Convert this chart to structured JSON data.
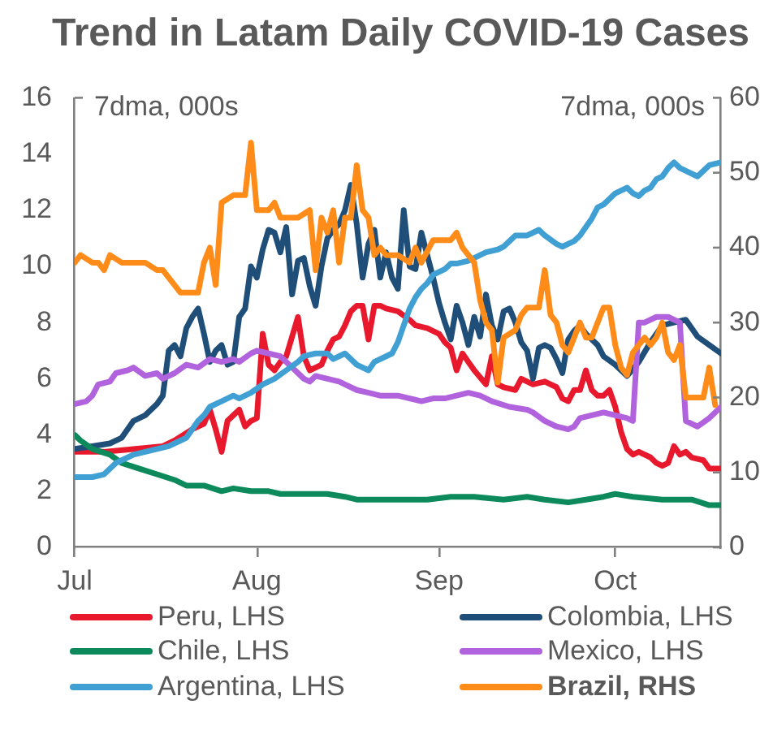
{
  "chart_data": {
    "type": "line",
    "title": "Trend in Latam Daily COVID-19 Cases",
    "ylabel": "7dma, 000s",
    "y2label": "7dma, 000s",
    "xlim": [
      "--07-01",
      "--10-19"
    ],
    "xticks": [
      {
        "value": "--07-01",
        "label": "Jul"
      },
      {
        "value": "--08-01",
        "label": "Aug"
      },
      {
        "value": "--09-01",
        "label": "Sep"
      },
      {
        "value": "--10-01",
        "label": "Oct"
      }
    ],
    "ylim": [
      0,
      16
    ],
    "yticks": [
      0,
      2,
      4,
      6,
      8,
      10,
      12,
      14,
      16
    ],
    "y2lim": [
      0,
      60
    ],
    "y2ticks": [
      0,
      10,
      20,
      30,
      40,
      50,
      60
    ],
    "legend": "bottom",
    "marker": "none",
    "series": [
      {
        "name": "Peru, LHS",
        "color": "#e8192c",
        "x": [
          "--07-01",
          "--07-06",
          "--07-11",
          "--07-16",
          "--07-18",
          "--07-21",
          "--07-23",
          "--07-24",
          "--07-25",
          "--07-26",
          "--07-27",
          "--07-28",
          "--07-29",
          "--07-30",
          "--07-31",
          "--08-01",
          "--08-02",
          "--08-03",
          "--08-04",
          "--08-05",
          "--08-06",
          "--08-07",
          "--08-08",
          "--08-09",
          "--08-10",
          "--08-11",
          "--08-12",
          "--08-13",
          "--08-14",
          "--08-15",
          "--08-16",
          "--08-17",
          "--08-18",
          "--08-19",
          "--08-20",
          "--08-21",
          "--08-22",
          "--08-23",
          "--08-25",
          "--08-27",
          "--08-28",
          "--08-30",
          "--09-01",
          "--09-02",
          "--09-03",
          "--09-04",
          "--09-05",
          "--09-06",
          "--09-07",
          "--09-09",
          "--09-10",
          "--09-11",
          "--09-12",
          "--09-14",
          "--09-15",
          "--09-17",
          "--09-19",
          "--09-21",
          "--09-22",
          "--09-23",
          "--09-24",
          "--09-25",
          "--09-26",
          "--09-27",
          "--09-28",
          "--09-29",
          "--09-30",
          "--10-01",
          "--10-02",
          "--10-03",
          "--10-04",
          "--10-05",
          "--10-07",
          "--10-08",
          "--10-09",
          "--10-10",
          "--10-11",
          "--10-12",
          "--10-13",
          "--10-14",
          "--10-16",
          "--10-17",
          "--10-19"
        ],
        "values": [
          3.4,
          3.4,
          3.5,
          3.6,
          3.8,
          4.2,
          4.4,
          4.9,
          4.2,
          3.4,
          4.5,
          4.7,
          4.9,
          4.3,
          4.5,
          4.6,
          7.6,
          6.5,
          6.3,
          6.6,
          6.8,
          7.5,
          8.2,
          6.8,
          6.3,
          6.4,
          6.5,
          7.0,
          7.4,
          7.5,
          7.9,
          8.4,
          8.6,
          8.6,
          7.4,
          8.6,
          8.6,
          8.5,
          8.4,
          8.1,
          7.9,
          7.8,
          7.6,
          7.3,
          7.1,
          6.3,
          6.9,
          6.6,
          6.3,
          5.8,
          6.8,
          5.8,
          5.7,
          5.6,
          6.0,
          5.8,
          5.9,
          5.7,
          5.3,
          5.2,
          5.6,
          5.6,
          6.3,
          5.6,
          5.4,
          5.4,
          5.6,
          5.0,
          4.1,
          3.5,
          3.3,
          3.4,
          3.2,
          3.0,
          2.9,
          3.0,
          3.6,
          3.3,
          3.4,
          3.2,
          3.1,
          2.8,
          2.8
        ]
      },
      {
        "name": "Colombia, LHS",
        "color": "#1f4e79",
        "x": [
          "--07-01",
          "--07-04",
          "--07-07",
          "--07-09",
          "--07-11",
          "--07-13",
          "--07-15",
          "--07-16",
          "--07-17",
          "--07-18",
          "--07-19",
          "--07-20",
          "--07-21",
          "--07-22",
          "--07-23",
          "--07-24",
          "--07-25",
          "--07-26",
          "--07-27",
          "--07-28",
          "--07-29",
          "--07-30",
          "--07-31",
          "--08-01",
          "--08-02",
          "--08-03",
          "--08-04",
          "--08-05",
          "--08-06",
          "--08-07",
          "--08-08",
          "--08-09",
          "--08-10",
          "--08-11",
          "--08-12",
          "--08-13",
          "--08-14",
          "--08-15",
          "--08-16",
          "--08-17",
          "--08-18",
          "--08-19",
          "--08-20",
          "--08-21",
          "--08-22",
          "--08-23",
          "--08-24",
          "--08-25",
          "--08-26",
          "--08-27",
          "--08-28",
          "--08-29",
          "--08-30",
          "--08-31",
          "--09-01",
          "--09-02",
          "--09-03",
          "--09-04",
          "--09-05",
          "--09-06",
          "--09-07",
          "--09-08",
          "--09-09",
          "--09-10",
          "--09-11",
          "--09-12",
          "--09-13",
          "--09-14",
          "--09-15",
          "--09-16",
          "--09-17",
          "--09-18",
          "--09-19",
          "--09-20",
          "--09-21",
          "--09-22",
          "--09-23",
          "--09-24",
          "--09-25",
          "--09-26",
          "--09-27",
          "--09-28",
          "--09-29",
          "--10-01",
          "--10-03",
          "--10-05",
          "--10-07",
          "--10-09",
          "--10-11",
          "--10-13",
          "--10-15",
          "--10-17",
          "--10-19"
        ],
        "values": [
          3.5,
          3.6,
          3.7,
          3.9,
          4.5,
          4.7,
          5.1,
          5.4,
          7.0,
          7.2,
          6.8,
          7.8,
          8.2,
          8.5,
          7.6,
          6.6,
          7.0,
          7.2,
          6.5,
          6.6,
          8.2,
          8.5,
          10.0,
          9.6,
          10.6,
          11.3,
          11.2,
          10.5,
          11.4,
          9.0,
          10.2,
          10.3,
          9.3,
          8.6,
          10.0,
          11.0,
          11.3,
          11.5,
          12.0,
          12.9,
          11.5,
          9.6,
          10.8,
          11.3,
          9.6,
          10.5,
          9.6,
          9.2,
          12.0,
          10.0,
          9.9,
          11.2,
          10.4,
          9.6,
          8.7,
          8.0,
          7.4,
          8.6,
          8.0,
          7.2,
          8.2,
          7.5,
          9.0,
          7.9,
          7.4,
          8.4,
          8.5,
          8.0,
          7.3,
          7.0,
          6.0,
          7.1,
          7.2,
          7.1,
          6.7,
          6.2,
          7.4,
          7.7,
          7.9,
          7.6,
          7.4,
          7.2,
          6.8,
          6.5,
          6.1,
          6.6,
          7.3,
          7.9,
          8.0,
          8.1,
          7.5,
          7.2,
          6.9
        ]
      },
      {
        "name": "Chile, LHS",
        "color": "#0c8a5b",
        "x": [
          "--07-01",
          "--07-02",
          "--07-04",
          "--07-07",
          "--07-09",
          "--07-12",
          "--07-15",
          "--07-18",
          "--07-20",
          "--07-23",
          "--07-26",
          "--07-28",
          "--07-31",
          "--08-03",
          "--08-05",
          "--08-10",
          "--08-13",
          "--08-16",
          "--08-18",
          "--08-22",
          "--08-27",
          "--08-30",
          "--09-03",
          "--09-07",
          "--09-12",
          "--09-16",
          "--09-19",
          "--09-23",
          "--09-26",
          "--09-29",
          "--10-01",
          "--10-04",
          "--10-09",
          "--10-14",
          "--10-17",
          "--10-19"
        ],
        "values": [
          4.0,
          3.8,
          3.5,
          3.3,
          3.0,
          2.8,
          2.6,
          2.4,
          2.2,
          2.2,
          2.0,
          2.1,
          2.0,
          2.0,
          1.9,
          1.9,
          1.9,
          1.8,
          1.7,
          1.7,
          1.7,
          1.7,
          1.8,
          1.8,
          1.7,
          1.8,
          1.7,
          1.6,
          1.7,
          1.8,
          1.9,
          1.8,
          1.7,
          1.7,
          1.5,
          1.5
        ]
      },
      {
        "name": "Mexico, LHS",
        "color": "#b162dd",
        "x": [
          "--07-01",
          "--07-03",
          "--07-04",
          "--07-05",
          "--07-07",
          "--07-08",
          "--07-10",
          "--07-11",
          "--07-13",
          "--07-15",
          "--07-16",
          "--07-18",
          "--07-20",
          "--07-22",
          "--07-24",
          "--07-26",
          "--07-28",
          "--07-29",
          "--07-31",
          "--08-01",
          "--08-03",
          "--08-05",
          "--08-06",
          "--08-07",
          "--08-09",
          "--08-10",
          "--08-11",
          "--08-13",
          "--08-15",
          "--08-16",
          "--08-18",
          "--08-20",
          "--08-22",
          "--08-25",
          "--08-27",
          "--08-29",
          "--08-31",
          "--09-02",
          "--09-04",
          "--09-06",
          "--09-08",
          "--09-10",
          "--09-13",
          "--09-16",
          "--09-17",
          "--09-19",
          "--09-21",
          "--09-23",
          "--09-24",
          "--09-25",
          "--09-27",
          "--09-29",
          "--10-01",
          "--10-03",
          "--10-04",
          "--10-05",
          "--10-06",
          "--10-08",
          "--10-10",
          "--10-12",
          "--10-13",
          "--10-15",
          "--10-17",
          "--10-19"
        ],
        "values": [
          5.1,
          5.2,
          5.4,
          5.8,
          5.9,
          6.2,
          6.3,
          6.4,
          6.1,
          6.2,
          6.0,
          6.2,
          6.5,
          6.4,
          6.7,
          6.6,
          6.7,
          6.6,
          6.9,
          7.0,
          6.9,
          6.8,
          6.6,
          6.4,
          6.0,
          5.9,
          6.1,
          6.0,
          5.9,
          5.8,
          5.6,
          5.5,
          5.4,
          5.4,
          5.3,
          5.2,
          5.3,
          5.3,
          5.4,
          5.5,
          5.4,
          5.2,
          5.0,
          4.9,
          4.8,
          4.5,
          4.3,
          4.2,
          4.3,
          4.6,
          4.7,
          4.8,
          4.7,
          4.6,
          4.5,
          8.0,
          8.0,
          8.2,
          8.2,
          8.0,
          4.5,
          4.3,
          4.6,
          5.0
        ]
      },
      {
        "name": "Argentina, LHS",
        "color": "#41a0d3",
        "x": [
          "--07-01",
          "--07-04",
          "--07-06",
          "--07-08",
          "--07-09",
          "--07-11",
          "--07-13",
          "--07-15",
          "--07-17",
          "--07-19",
          "--07-20",
          "--07-21",
          "--07-22",
          "--07-23",
          "--07-24",
          "--07-26",
          "--07-28",
          "--07-29",
          "--07-31",
          "--08-02",
          "--08-04",
          "--08-06",
          "--08-08",
          "--08-09",
          "--08-11",
          "--08-13",
          "--08-14",
          "--08-16",
          "--08-18",
          "--08-20",
          "--08-21",
          "--08-23",
          "--08-24",
          "--08-25",
          "--08-26",
          "--08-27",
          "--08-28",
          "--08-29",
          "--08-30",
          "--08-31",
          "--09-02",
          "--09-03",
          "--09-04",
          "--09-06",
          "--09-07",
          "--09-09",
          "--09-11",
          "--09-12",
          "--09-13",
          "--09-14",
          "--09-16",
          "--09-17",
          "--09-18",
          "--09-19",
          "--09-21",
          "--09-22",
          "--09-24",
          "--09-25",
          "--09-26",
          "--09-27",
          "--09-28",
          "--09-29",
          "--09-30",
          "--10-01",
          "--10-02",
          "--10-03",
          "--10-04",
          "--10-05",
          "--10-06",
          "--10-07",
          "--10-08",
          "--10-09",
          "--10-10",
          "--10-11",
          "--10-12",
          "--10-13",
          "--10-15",
          "--10-16",
          "--10-17",
          "--10-19"
        ],
        "values": [
          2.5,
          2.5,
          2.6,
          3.0,
          3.1,
          3.3,
          3.4,
          3.5,
          3.6,
          3.8,
          3.9,
          4.2,
          4.5,
          4.7,
          5.0,
          5.2,
          5.4,
          5.3,
          5.5,
          5.8,
          6.0,
          6.3,
          6.6,
          6.8,
          6.9,
          6.9,
          6.7,
          6.9,
          6.5,
          6.3,
          6.6,
          6.8,
          6.9,
          7.3,
          7.9,
          8.5,
          8.9,
          9.2,
          9.4,
          9.7,
          9.9,
          10.1,
          10.1,
          10.2,
          10.3,
          10.5,
          10.6,
          10.7,
          10.9,
          11.1,
          11.1,
          11.2,
          11.3,
          11.1,
          10.8,
          10.7,
          10.9,
          11.1,
          11.4,
          11.7,
          12.1,
          12.2,
          12.4,
          12.6,
          12.7,
          12.8,
          12.6,
          12.5,
          12.7,
          12.8,
          13.1,
          13.2,
          13.5,
          13.7,
          13.5,
          13.4,
          13.2,
          13.4,
          13.6,
          13.7
        ]
      },
      {
        "name": "Brazil, RHS",
        "color": "#ff8b19",
        "axis": "y2",
        "x": [
          "--07-01",
          "--07-02",
          "--07-04",
          "--07-05",
          "--07-06",
          "--07-07",
          "--07-09",
          "--07-11",
          "--07-13",
          "--07-15",
          "--07-16",
          "--07-17",
          "--07-18",
          "--07-19",
          "--07-22",
          "--07-23",
          "--07-24",
          "--07-25",
          "--07-26",
          "--07-28",
          "--07-30",
          "--07-31",
          "--08-01",
          "--08-03",
          "--08-04",
          "--08-05",
          "--08-08",
          "--08-10",
          "--08-11",
          "--08-12",
          "--08-13",
          "--08-14",
          "--08-15",
          "--08-16",
          "--08-17",
          "--08-18",
          "--08-19",
          "--08-20",
          "--08-21",
          "--08-22",
          "--08-23",
          "--08-25",
          "--08-27",
          "--08-28",
          "--08-29",
          "--08-31",
          "--09-01",
          "--09-03",
          "--09-04",
          "--09-05",
          "--09-06",
          "--09-07",
          "--09-08",
          "--09-09",
          "--09-10",
          "--09-11",
          "--09-12",
          "--09-14",
          "--09-15",
          "--09-16",
          "--09-18",
          "--09-19",
          "--09-20",
          "--09-21",
          "--09-22",
          "--09-23",
          "--09-24",
          "--09-25",
          "--09-26",
          "--09-27",
          "--09-28",
          "--09-29",
          "--09-30",
          "--10-01",
          "--10-02",
          "--10-03",
          "--10-04",
          "--10-05",
          "--10-06",
          "--10-07",
          "--10-08",
          "--10-09",
          "--10-10",
          "--10-11",
          "--10-12",
          "--10-13",
          "--10-14",
          "--10-16",
          "--10-17",
          "--10-18"
        ],
        "values": [
          38,
          39,
          38,
          38,
          37,
          39,
          38,
          38,
          38,
          37,
          37,
          36,
          35,
          34,
          34,
          38,
          40,
          35,
          46,
          47,
          47,
          54,
          45,
          45,
          46,
          44,
          44,
          45,
          37,
          44,
          42,
          45,
          38,
          44,
          44,
          51,
          45,
          44,
          39,
          40,
          39,
          39,
          38,
          40,
          38,
          41,
          41,
          41,
          42,
          40,
          39,
          38,
          33,
          30,
          29,
          22,
          28,
          29,
          31,
          32,
          32,
          37,
          31,
          30,
          27,
          26,
          28,
          30,
          28,
          28,
          30,
          32,
          32,
          27,
          24,
          23,
          26,
          27,
          28,
          27,
          28,
          30,
          26,
          25,
          27,
          20,
          20,
          20,
          24,
          19
        ]
      }
    ]
  }
}
